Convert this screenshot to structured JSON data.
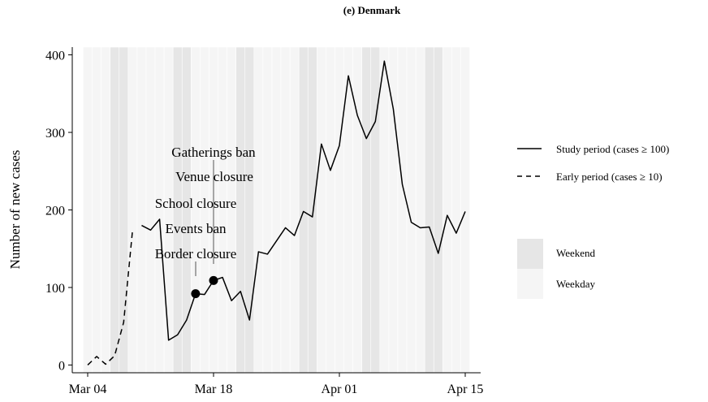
{
  "chart_data": {
    "type": "line",
    "title": "(e) Denmark",
    "xlabel": "",
    "ylabel": "Number of new cases",
    "xlim": [
      "2020-03-04",
      "2020-04-15"
    ],
    "ylim": [
      -10,
      410
    ],
    "x_ticks": [
      {
        "date": "2020-03-04",
        "label": "Mar 04"
      },
      {
        "date": "2020-03-18",
        "label": "Mar 18"
      },
      {
        "date": "2020-04-01",
        "label": "Apr 01"
      },
      {
        "date": "2020-04-15",
        "label": "Apr 15"
      }
    ],
    "y_ticks": [
      0,
      100,
      200,
      300,
      400
    ],
    "weekend_dates": [
      "2020-03-07",
      "2020-03-08",
      "2020-03-14",
      "2020-03-15",
      "2020-03-21",
      "2020-03-22",
      "2020-03-28",
      "2020-03-29",
      "2020-04-04",
      "2020-04-05",
      "2020-04-11",
      "2020-04-12"
    ],
    "series": [
      {
        "name": "Early period (cases ≥ 10)",
        "style": "dashed",
        "points": [
          {
            "x": "2020-03-04",
            "y": 0
          },
          {
            "x": "2020-03-05",
            "y": 11
          },
          {
            "x": "2020-03-06",
            "y": 1
          },
          {
            "x": "2020-03-07",
            "y": 12
          },
          {
            "x": "2020-03-08",
            "y": 55
          },
          {
            "x": "2020-03-09",
            "y": 175
          }
        ]
      },
      {
        "name": "Study period (cases ≥ 100)",
        "style": "solid",
        "points": [
          {
            "x": "2020-03-10",
            "y": 180
          },
          {
            "x": "2020-03-11",
            "y": 174
          },
          {
            "x": "2020-03-12",
            "y": 188
          },
          {
            "x": "2020-03-13",
            "y": 32
          },
          {
            "x": "2020-03-14",
            "y": 39
          },
          {
            "x": "2020-03-15",
            "y": 58
          },
          {
            "x": "2020-03-16",
            "y": 92
          },
          {
            "x": "2020-03-17",
            "y": 91
          },
          {
            "x": "2020-03-18",
            "y": 109
          },
          {
            "x": "2020-03-19",
            "y": 113
          },
          {
            "x": "2020-03-20",
            "y": 83
          },
          {
            "x": "2020-03-21",
            "y": 95
          },
          {
            "x": "2020-03-22",
            "y": 58
          },
          {
            "x": "2020-03-23",
            "y": 146
          },
          {
            "x": "2020-03-24",
            "y": 143
          },
          {
            "x": "2020-03-25",
            "y": 160
          },
          {
            "x": "2020-03-26",
            "y": 177
          },
          {
            "x": "2020-03-27",
            "y": 167
          },
          {
            "x": "2020-03-28",
            "y": 198
          },
          {
            "x": "2020-03-29",
            "y": 191
          },
          {
            "x": "2020-03-30",
            "y": 285
          },
          {
            "x": "2020-03-31",
            "y": 251
          },
          {
            "x": "2020-04-01",
            "y": 283
          },
          {
            "x": "2020-04-02",
            "y": 373
          },
          {
            "x": "2020-04-03",
            "y": 322
          },
          {
            "x": "2020-04-04",
            "y": 292
          },
          {
            "x": "2020-04-05",
            "y": 314
          },
          {
            "x": "2020-04-06",
            "y": 392
          },
          {
            "x": "2020-04-07",
            "y": 330
          },
          {
            "x": "2020-04-08",
            "y": 233
          },
          {
            "x": "2020-04-09",
            "y": 184
          },
          {
            "x": "2020-04-10",
            "y": 177
          },
          {
            "x": "2020-04-11",
            "y": 178
          },
          {
            "x": "2020-04-12",
            "y": 144
          },
          {
            "x": "2020-04-13",
            "y": 193
          },
          {
            "x": "2020-04-14",
            "y": 170
          },
          {
            "x": "2020-04-15",
            "y": 198
          }
        ]
      }
    ],
    "events": [
      {
        "x": "2020-03-16",
        "y": 92
      },
      {
        "x": "2020-03-18",
        "y": 109
      }
    ],
    "annotations": [
      "Gatherings ban",
      "Venue closure",
      "School closure",
      "Events ban",
      "Border closure"
    ],
    "legend": {
      "placement": "right",
      "lines": [
        "Study period (cases ≥ 100)",
        "Early period (cases ≥ 10)"
      ],
      "fills": [
        "Weekend",
        "Weekday"
      ]
    },
    "colors": {
      "line": "#000000",
      "weekend": "#e6e6e6",
      "weekday": "#f5f5f5",
      "event_marker": "#000000"
    }
  }
}
